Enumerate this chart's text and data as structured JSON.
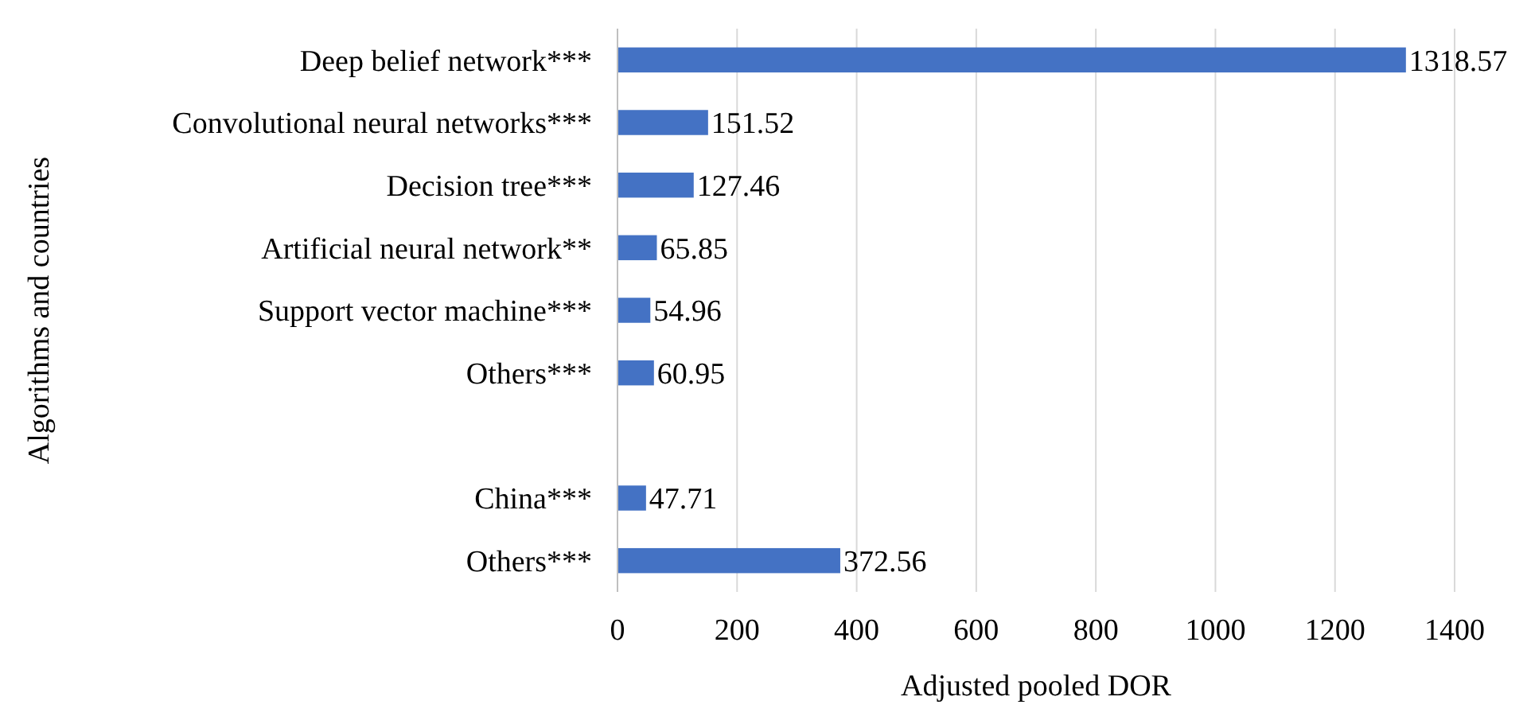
{
  "chart_data": {
    "type": "bar",
    "orientation": "horizontal",
    "xlabel": "Adjusted pooled DOR",
    "ylabel": "Algorithms and countries",
    "categories": [
      "Deep belief network***",
      "Convolutional neural networks***",
      "Decision tree***",
      "Artificial neural network**",
      "Support vector machine***",
      "Others***",
      null,
      "China***",
      "Others***"
    ],
    "values": [
      1318.57,
      151.52,
      127.46,
      65.85,
      54.96,
      60.95,
      null,
      47.71,
      372.56
    ],
    "color": "#4472c4",
    "xlim": [
      0,
      1400
    ],
    "xticks": [
      0,
      200,
      400,
      600,
      800,
      1000,
      1200,
      1400
    ],
    "grid": "x",
    "data_labels": true
  }
}
